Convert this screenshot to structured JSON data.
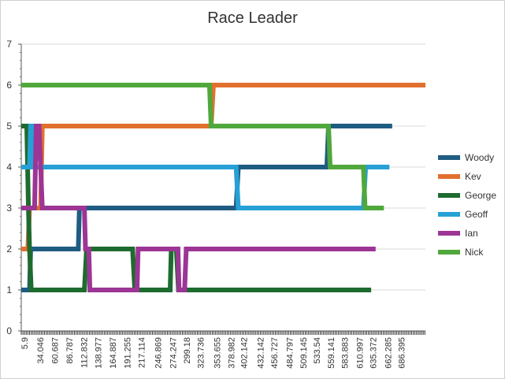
{
  "chart_data": {
    "type": "line",
    "title": "Race Leader",
    "xlabel": "",
    "ylabel": "",
    "ylim": [
      0,
      7
    ],
    "yticks": [
      0,
      1,
      2,
      3,
      4,
      5,
      6,
      7
    ],
    "xlim": [
      0,
      730
    ],
    "x_tick_labels": [
      "5.9",
      "34.046",
      "60.687",
      "86.787",
      "112.832",
      "138.977",
      "164.887",
      "191.255",
      "217.114",
      "246.869",
      "274.247",
      "299.18",
      "323.736",
      "353.655",
      "378.982",
      "402.142",
      "432.142",
      "456.727",
      "484.797",
      "509.145",
      "533.54",
      "559.141",
      "583.883",
      "610.997",
      "635.372",
      "662.285",
      "686.395"
    ],
    "x_tick_values": [
      5.9,
      34.046,
      60.687,
      86.787,
      112.832,
      138.977,
      164.887,
      191.255,
      217.114,
      246.869,
      274.247,
      299.18,
      323.736,
      353.655,
      378.982,
      402.142,
      432.142,
      456.727,
      484.797,
      509.145,
      533.54,
      559.141,
      583.883,
      610.997,
      635.372,
      662.285,
      686.395
    ],
    "grid": true,
    "legend_position": "right",
    "series": [
      {
        "name": "Woody",
        "color": "#1f5c82",
        "points": [
          [
            0,
            1
          ],
          [
            15,
            1
          ],
          [
            17,
            2
          ],
          [
            103,
            2
          ],
          [
            105,
            3
          ],
          [
            388,
            3
          ],
          [
            392,
            4
          ],
          [
            552,
            4
          ],
          [
            555,
            5
          ],
          [
            670,
            5
          ]
        ]
      },
      {
        "name": "Kev",
        "color": "#e2702e",
        "points": [
          [
            0,
            2
          ],
          [
            12,
            2
          ],
          [
            15,
            3
          ],
          [
            35,
            3
          ],
          [
            38,
            5
          ],
          [
            343,
            5
          ],
          [
            347,
            6
          ],
          [
            730,
            6
          ]
        ]
      },
      {
        "name": "George",
        "color": "#1e6b2f",
        "points": [
          [
            0,
            5
          ],
          [
            10,
            5
          ],
          [
            13,
            3
          ],
          [
            15,
            2
          ],
          [
            18,
            1
          ],
          [
            114,
            1
          ],
          [
            118,
            2
          ],
          [
            201,
            2
          ],
          [
            205,
            1
          ],
          [
            269,
            1
          ],
          [
            271,
            2
          ],
          [
            280,
            2
          ],
          [
            284,
            1
          ],
          [
            632,
            1
          ]
        ]
      },
      {
        "name": "Geoff",
        "color": "#27a0d6",
        "points": [
          [
            0,
            4
          ],
          [
            15,
            4
          ],
          [
            17,
            5
          ],
          [
            21,
            5
          ],
          [
            23,
            4
          ],
          [
            388,
            4
          ],
          [
            392,
            3
          ],
          [
            618,
            3
          ],
          [
            622,
            4
          ],
          [
            665,
            4
          ]
        ]
      },
      {
        "name": "Ian",
        "color": "#9c3595",
        "points": [
          [
            0,
            3
          ],
          [
            24,
            3
          ],
          [
            27,
            5
          ],
          [
            32,
            5
          ],
          [
            35,
            4
          ],
          [
            38,
            3
          ],
          [
            114,
            3
          ],
          [
            116,
            2
          ],
          [
            122,
            2
          ],
          [
            124,
            1
          ],
          [
            209,
            1
          ],
          [
            211,
            2
          ],
          [
            283,
            2
          ],
          [
            285,
            1
          ],
          [
            295,
            1
          ],
          [
            298,
            2
          ],
          [
            640,
            2
          ]
        ]
      },
      {
        "name": "Nick",
        "color": "#50a83c",
        "points": [
          [
            0,
            6
          ],
          [
            340,
            6
          ],
          [
            343,
            5
          ],
          [
            555,
            5
          ],
          [
            558,
            4
          ],
          [
            618,
            4
          ],
          [
            621,
            3
          ],
          [
            655,
            3
          ]
        ]
      }
    ]
  }
}
